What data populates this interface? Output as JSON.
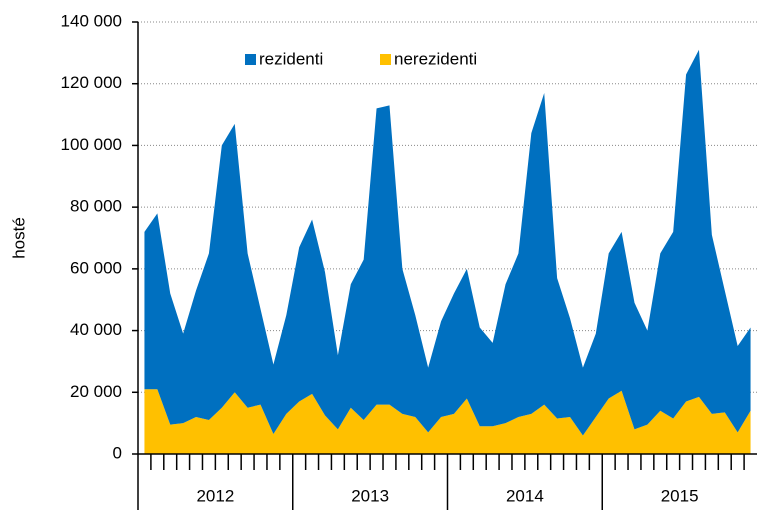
{
  "chart_data": {
    "type": "area",
    "stacked": true,
    "y_label": "hosté",
    "categories": [
      null,
      null,
      null,
      null,
      null,
      null,
      null,
      null,
      null,
      null,
      null,
      null,
      null,
      null,
      null,
      null,
      null,
      null,
      null,
      null,
      null,
      null,
      null,
      null,
      null,
      null,
      null,
      null,
      null,
      null,
      null,
      null,
      null,
      null,
      null,
      null,
      null,
      null,
      null,
      null,
      null,
      null,
      null,
      null,
      null,
      null,
      null,
      null
    ],
    "years": [
      "2012",
      "2013",
      "2014",
      "2015"
    ],
    "series": [
      {
        "name": "rezidenti",
        "color": "#0070c0",
        "values": [
          51000,
          57000,
          42500,
          29000,
          41000,
          54000,
          85000,
          87000,
          50000,
          31000,
          22500,
          32000,
          50000,
          56500,
          46500,
          24000,
          40000,
          52000,
          96000,
          97000,
          47000,
          33000,
          21000,
          31000,
          39000,
          42000,
          32000,
          27000,
          45000,
          53000,
          91000,
          101000,
          45500,
          32000,
          22000,
          27000,
          47000,
          51500,
          41000,
          30500,
          51000,
          60500,
          106000,
          112500,
          58000,
          39500,
          28000,
          27000
        ]
      },
      {
        "name": "nerezidenti",
        "color": "#ffc000",
        "values": [
          21000,
          21000,
          9500,
          10000,
          12000,
          11000,
          15000,
          20000,
          15000,
          16000,
          6500,
          13000,
          17000,
          19500,
          12500,
          8000,
          15000,
          11000,
          16000,
          16000,
          13000,
          12000,
          7000,
          12000,
          13000,
          18000,
          9000,
          9000,
          10000,
          12000,
          13000,
          16000,
          11500,
          12000,
          6000,
          12000,
          18000,
          20500,
          8000,
          9500,
          14000,
          11500,
          17000,
          18500,
          13000,
          13500,
          7000,
          14000
        ]
      }
    ],
    "ylim": [
      0,
      140000
    ],
    "yticks": [
      0,
      {
        "value": 20000,
        "label": "20 000"
      },
      {
        "value": 40000,
        "label": "40 000"
      },
      {
        "value": 60000,
        "label": "60 000"
      },
      {
        "value": 80000,
        "label": "80 000"
      },
      {
        "value": 100000,
        "label": "100 000"
      },
      {
        "value": 120000,
        "label": "120 000"
      },
      {
        "value": 140000,
        "label": "140 000"
      }
    ],
    "grid": true,
    "legend": "top"
  }
}
